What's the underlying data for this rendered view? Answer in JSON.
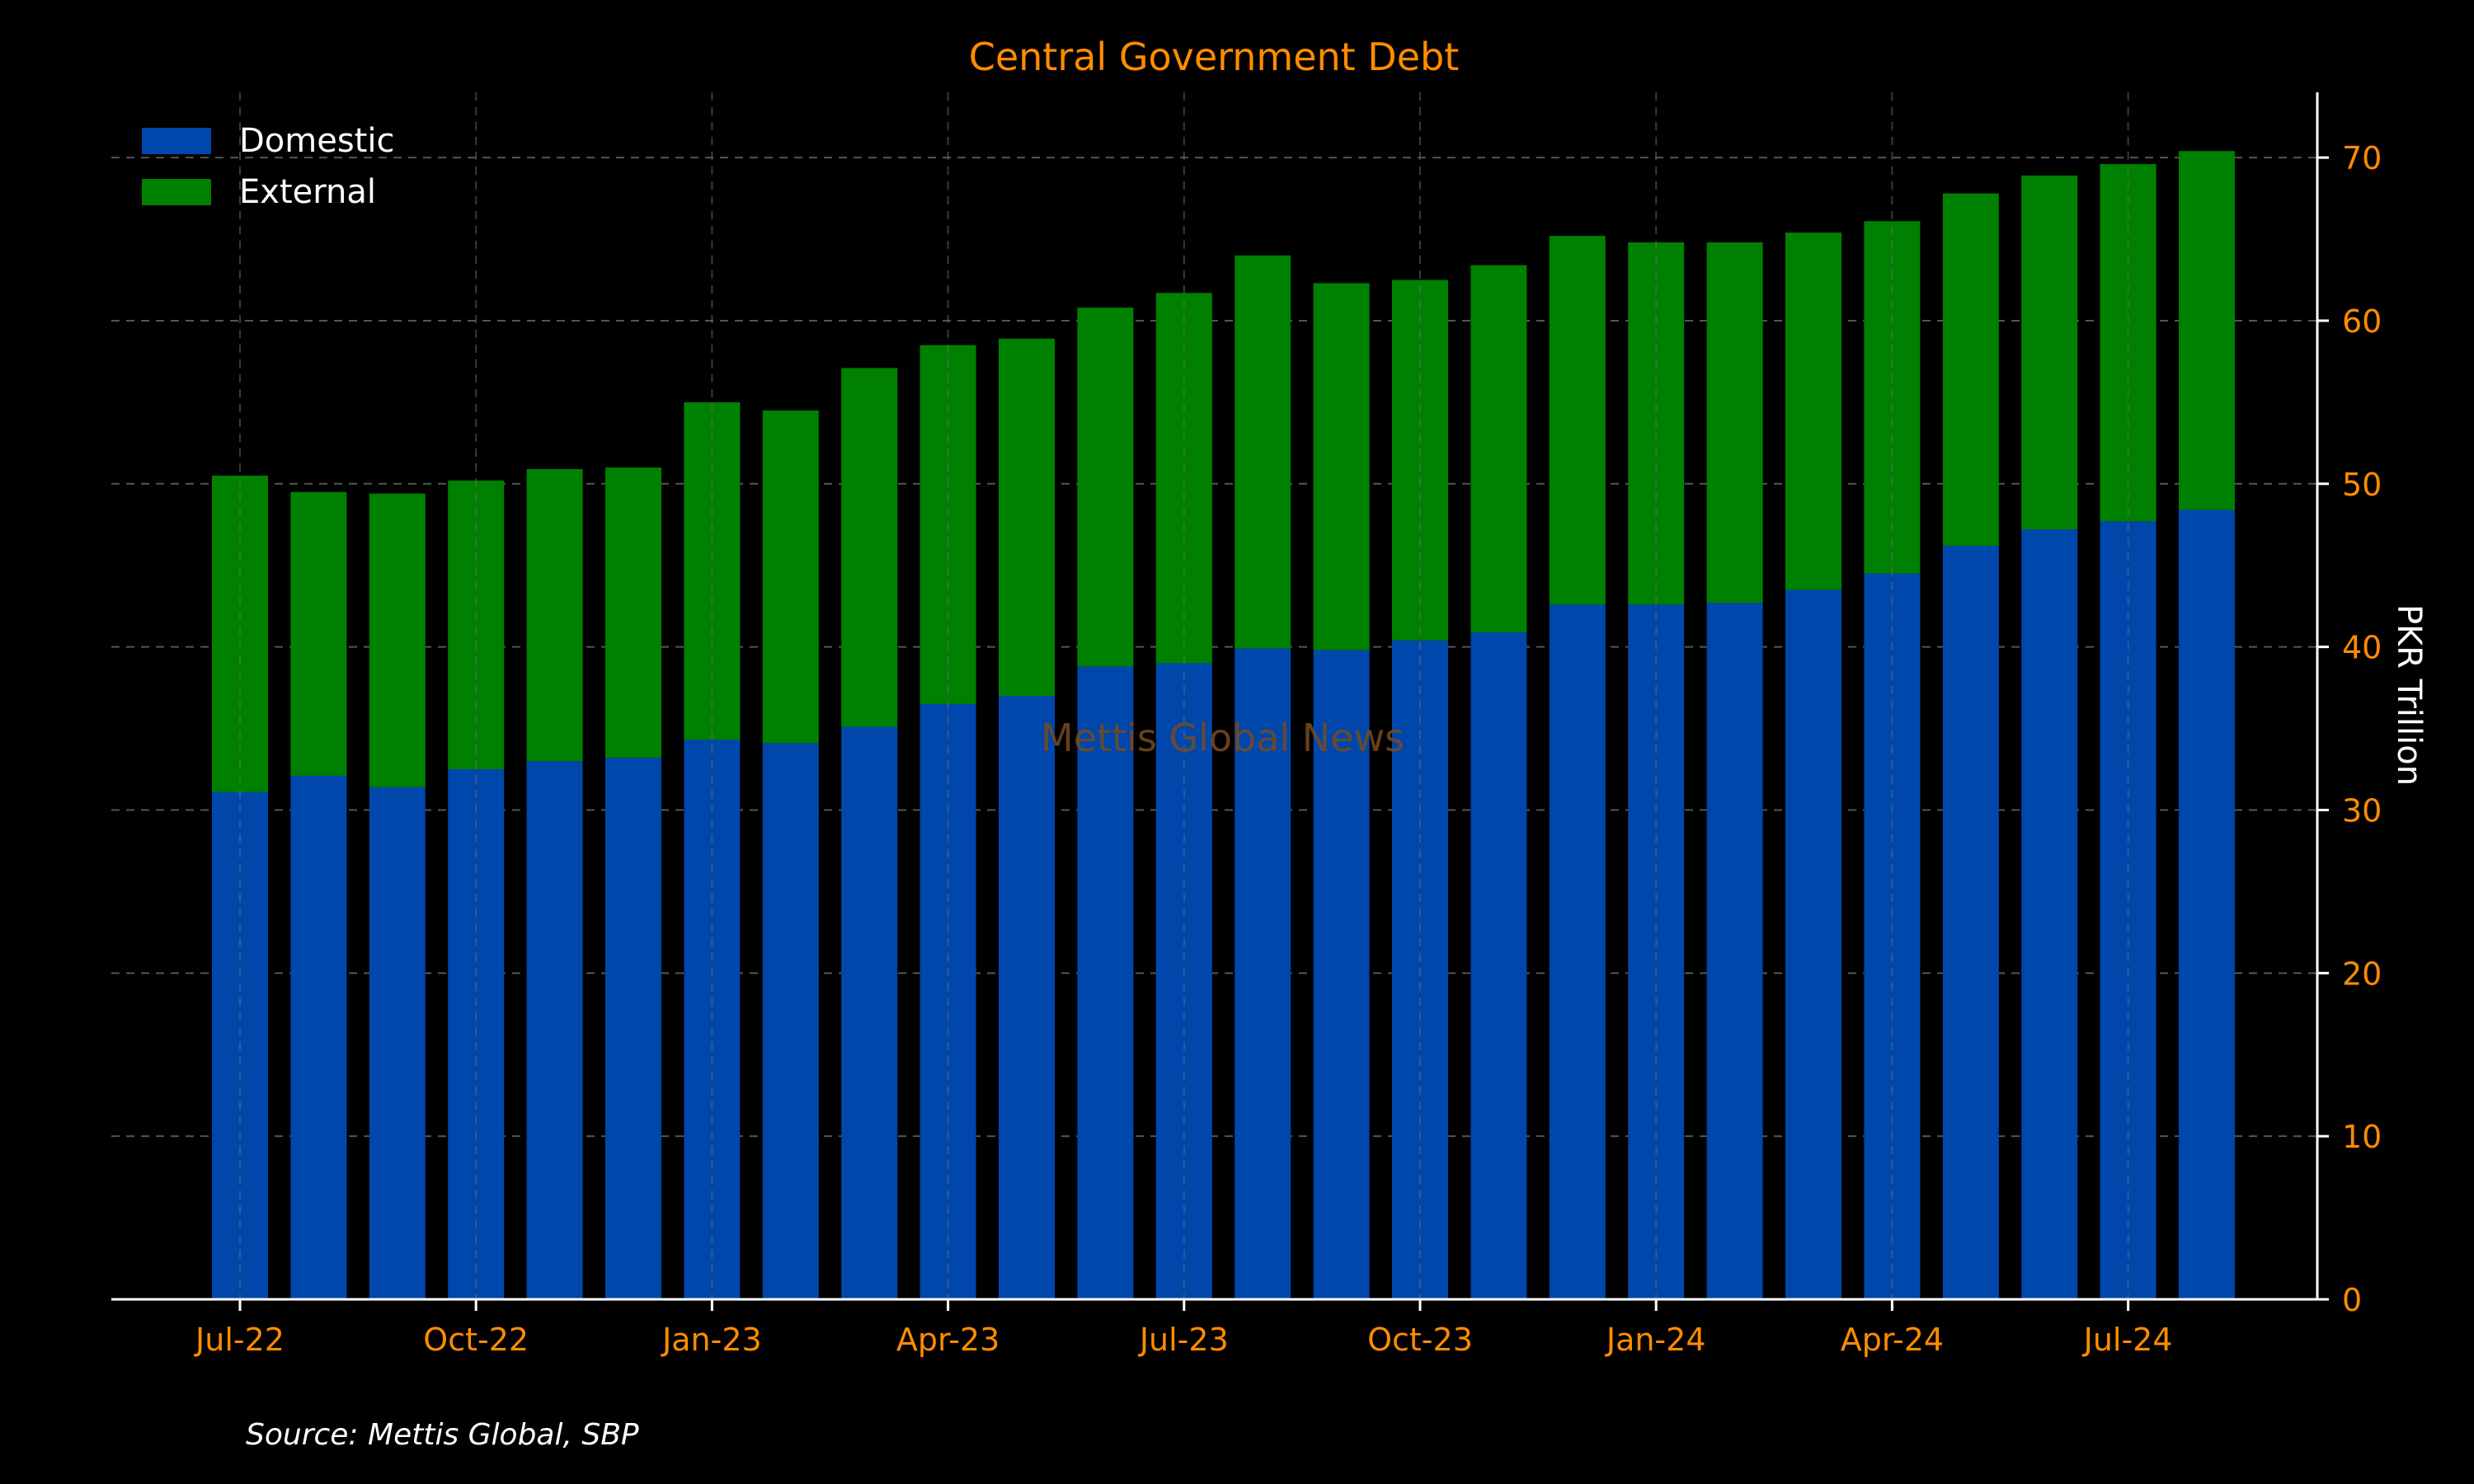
{
  "chart_data": {
    "type": "bar",
    "stacked": true,
    "title": "Central Government Debt",
    "ylabel": "PKR Trillion",
    "xlabel": "",
    "ylim": [
      0,
      74
    ],
    "yticks": [
      0,
      10,
      20,
      30,
      40,
      50,
      60,
      70
    ],
    "y_axis_position": "right",
    "grid": true,
    "legend_position": "top-left",
    "categories": [
      "Jul-22",
      "Aug-22",
      "Sep-22",
      "Oct-22",
      "Nov-22",
      "Dec-22",
      "Jan-23",
      "Feb-23",
      "Mar-23",
      "Apr-23",
      "May-23",
      "Jun-23",
      "Jul-23",
      "Aug-23",
      "Sep-23",
      "Oct-23",
      "Nov-23",
      "Dec-23",
      "Jan-24",
      "Feb-24",
      "Mar-24",
      "Apr-24",
      "May-24",
      "Jun-24",
      "Jul-24",
      "Aug-24"
    ],
    "x_tick_labels": [
      {
        "index": 0,
        "label": "Jul-22"
      },
      {
        "index": 3,
        "label": "Oct-22"
      },
      {
        "index": 6,
        "label": "Jan-23"
      },
      {
        "index": 9,
        "label": "Apr-23"
      },
      {
        "index": 12,
        "label": "Jul-23"
      },
      {
        "index": 15,
        "label": "Oct-23"
      },
      {
        "index": 18,
        "label": "Jan-24"
      },
      {
        "index": 21,
        "label": "Apr-24"
      },
      {
        "index": 24,
        "label": "Jul-24"
      }
    ],
    "series": [
      {
        "name": "Domestic",
        "color": "#0047ab",
        "values": [
          31.1,
          32.1,
          31.4,
          32.5,
          33.0,
          33.2,
          34.3,
          34.1,
          35.1,
          36.5,
          37.0,
          38.8,
          39.0,
          39.9,
          39.8,
          40.4,
          40.9,
          42.6,
          42.6,
          42.7,
          43.5,
          44.5,
          46.2,
          47.2,
          47.7,
          48.4
        ]
      },
      {
        "name": "External",
        "color": "#008000",
        "values": [
          19.4,
          17.4,
          18.0,
          17.7,
          17.9,
          17.8,
          20.7,
          20.4,
          22.0,
          22.0,
          21.9,
          22.0,
          22.7,
          24.1,
          22.5,
          22.1,
          22.5,
          22.6,
          22.2,
          22.1,
          21.9,
          21.6,
          21.6,
          21.7,
          21.9,
          22.0
        ]
      }
    ],
    "watermark": "Mettis Global News",
    "source": "Source: Mettis Global, SBP"
  },
  "colors": {
    "background": "#000000",
    "title": "#ff8c00",
    "tick_label": "#ff8c00",
    "axis": "#ffffff",
    "grid": "#555555"
  }
}
